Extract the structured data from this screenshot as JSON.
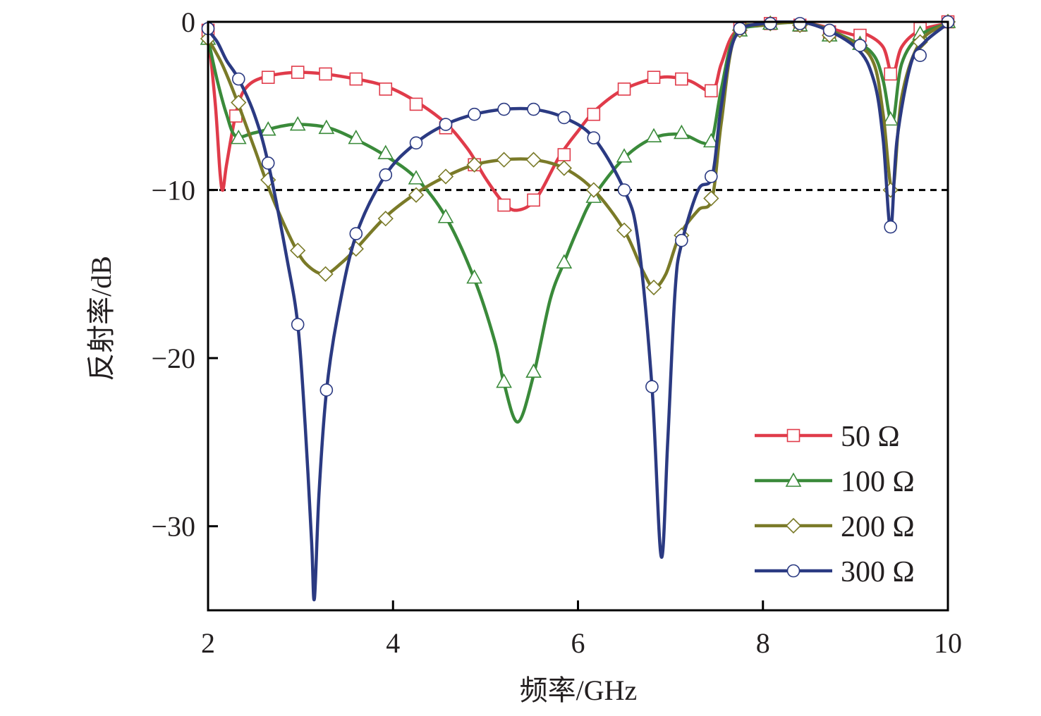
{
  "chart_data": {
    "type": "line",
    "xlabel": "频率/GHz",
    "ylabel": "反射率/dB",
    "xlim": [
      2,
      10
    ],
    "ylim": [
      -35,
      0
    ],
    "xticks": [
      2,
      4,
      6,
      8,
      10
    ],
    "xtick_labels": [
      "2",
      "4",
      "6",
      "8",
      "10"
    ],
    "yticks": [
      0,
      -10,
      -20,
      -30
    ],
    "ytick_labels": [
      "0",
      "−10",
      "−20",
      "−30"
    ],
    "grid": false,
    "legend_position": "bottom-right",
    "reference_line": {
      "y": -10,
      "style": "dashed",
      "color": "#000000"
    },
    "series": [
      {
        "name": "50 Ω",
        "color": "#e03b4a",
        "marker": "square",
        "curve": [
          [
            2.0,
            -0.5
          ],
          [
            2.08,
            -5
          ],
          [
            2.13,
            -9
          ],
          [
            2.16,
            -10
          ],
          [
            2.2,
            -8.5
          ],
          [
            2.3,
            -5.5
          ],
          [
            2.4,
            -4
          ],
          [
            2.6,
            -3.3
          ],
          [
            3.0,
            -3.0
          ],
          [
            3.5,
            -3.3
          ],
          [
            4.0,
            -4.0
          ],
          [
            4.5,
            -5.7
          ],
          [
            4.8,
            -7.5
          ],
          [
            5.0,
            -9.3
          ],
          [
            5.2,
            -10.8
          ],
          [
            5.35,
            -11.2
          ],
          [
            5.55,
            -10.5
          ],
          [
            5.8,
            -8.0
          ],
          [
            6.0,
            -6.5
          ],
          [
            6.2,
            -5.2
          ],
          [
            6.5,
            -4.0
          ],
          [
            6.9,
            -3.3
          ],
          [
            7.2,
            -3.5
          ],
          [
            7.45,
            -4.1
          ],
          [
            7.55,
            -2.5
          ],
          [
            7.7,
            -0.6
          ],
          [
            8.0,
            -0.1
          ],
          [
            8.5,
            -0.1
          ],
          [
            9.0,
            -0.8
          ],
          [
            9.1,
            -0.7
          ],
          [
            9.3,
            -1.5
          ],
          [
            9.4,
            -3.2
          ],
          [
            9.5,
            -1.5
          ],
          [
            9.7,
            -0.5
          ],
          [
            10.0,
            -0.1
          ]
        ],
        "markers": [
          [
            2.0,
            -0.5
          ],
          [
            2.3,
            -5.6
          ],
          [
            2.65,
            -3.3
          ],
          [
            2.97,
            -3.0
          ],
          [
            3.27,
            -3.1
          ],
          [
            3.6,
            -3.4
          ],
          [
            3.92,
            -4.0
          ],
          [
            4.25,
            -4.9
          ],
          [
            4.57,
            -6.3
          ],
          [
            4.88,
            -8.5
          ],
          [
            5.2,
            -10.9
          ],
          [
            5.52,
            -10.6
          ],
          [
            5.85,
            -7.9
          ],
          [
            6.17,
            -5.5
          ],
          [
            6.5,
            -4.0
          ],
          [
            6.82,
            -3.3
          ],
          [
            7.12,
            -3.4
          ],
          [
            7.44,
            -4.1
          ],
          [
            7.75,
            -0.4
          ],
          [
            8.08,
            -0.1
          ],
          [
            8.4,
            -0.2
          ],
          [
            8.72,
            -0.6
          ],
          [
            9.05,
            -0.8
          ],
          [
            9.38,
            -3.1
          ],
          [
            9.7,
            -0.4
          ],
          [
            10.0,
            0.0
          ]
        ]
      },
      {
        "name": "100 Ω",
        "color": "#3a8a3a",
        "marker": "triangle",
        "curve": [
          [
            2.0,
            -1.0
          ],
          [
            2.1,
            -3.5
          ],
          [
            2.2,
            -5.5
          ],
          [
            2.3,
            -6.8
          ],
          [
            2.5,
            -6.6
          ],
          [
            2.8,
            -6.2
          ],
          [
            3.0,
            -6.1
          ],
          [
            3.3,
            -6.3
          ],
          [
            3.6,
            -7.0
          ],
          [
            3.9,
            -7.9
          ],
          [
            4.25,
            -9.3
          ],
          [
            4.57,
            -11.6
          ],
          [
            4.88,
            -15.3
          ],
          [
            5.1,
            -19.0
          ],
          [
            5.2,
            -21.5
          ],
          [
            5.35,
            -23.8
          ],
          [
            5.52,
            -21.0
          ],
          [
            5.7,
            -16.5
          ],
          [
            5.85,
            -14.3
          ],
          [
            6.0,
            -12.3
          ],
          [
            6.17,
            -10.4
          ],
          [
            6.5,
            -8.1
          ],
          [
            6.82,
            -6.9
          ],
          [
            7.12,
            -6.7
          ],
          [
            7.35,
            -7.2
          ],
          [
            7.45,
            -7.0
          ],
          [
            7.55,
            -4.0
          ],
          [
            7.7,
            -0.8
          ],
          [
            8.0,
            -0.2
          ],
          [
            8.5,
            -0.1
          ],
          [
            9.0,
            -1.2
          ],
          [
            9.2,
            -2.0
          ],
          [
            9.3,
            -3.5
          ],
          [
            9.4,
            -6.0
          ],
          [
            9.5,
            -2.5
          ],
          [
            9.7,
            -0.8
          ],
          [
            10.0,
            -0.1
          ]
        ],
        "markers": [
          [
            2.0,
            -1.0
          ],
          [
            2.33,
            -6.9
          ],
          [
            2.65,
            -6.4
          ],
          [
            2.97,
            -6.1
          ],
          [
            3.28,
            -6.3
          ],
          [
            3.6,
            -6.9
          ],
          [
            3.92,
            -7.8
          ],
          [
            4.25,
            -9.3
          ],
          [
            4.57,
            -11.6
          ],
          [
            4.88,
            -15.2
          ],
          [
            5.2,
            -21.4
          ],
          [
            5.52,
            -20.8
          ],
          [
            5.85,
            -14.3
          ],
          [
            6.17,
            -10.4
          ],
          [
            6.5,
            -8.0
          ],
          [
            6.82,
            -6.8
          ],
          [
            7.12,
            -6.6
          ],
          [
            7.44,
            -7.1
          ],
          [
            7.75,
            -0.5
          ],
          [
            8.08,
            -0.1
          ],
          [
            8.4,
            -0.2
          ],
          [
            8.72,
            -0.8
          ],
          [
            9.05,
            -1.3
          ],
          [
            9.38,
            -5.8
          ],
          [
            9.7,
            -0.7
          ],
          [
            10.0,
            0.0
          ]
        ]
      },
      {
        "name": "200 Ω",
        "color": "#7a7a28",
        "marker": "diamond",
        "curve": [
          [
            2.0,
            -1.0
          ],
          [
            2.15,
            -2.5
          ],
          [
            2.3,
            -4.5
          ],
          [
            2.5,
            -7.5
          ],
          [
            2.7,
            -10.5
          ],
          [
            2.95,
            -13.5
          ],
          [
            3.1,
            -14.6
          ],
          [
            3.27,
            -15.0
          ],
          [
            3.45,
            -14.3
          ],
          [
            3.6,
            -13.5
          ],
          [
            3.92,
            -11.6
          ],
          [
            4.25,
            -10.2
          ],
          [
            4.57,
            -9.2
          ],
          [
            4.88,
            -8.5
          ],
          [
            5.2,
            -8.2
          ],
          [
            5.52,
            -8.2
          ],
          [
            5.85,
            -8.7
          ],
          [
            6.17,
            -10.0
          ],
          [
            6.5,
            -12.4
          ],
          [
            6.7,
            -14.8
          ],
          [
            6.82,
            -15.8
          ],
          [
            6.95,
            -15.0
          ],
          [
            7.1,
            -12.7
          ],
          [
            7.3,
            -11.2
          ],
          [
            7.45,
            -10.5
          ],
          [
            7.55,
            -6.0
          ],
          [
            7.7,
            -0.8
          ],
          [
            8.0,
            -0.2
          ],
          [
            8.5,
            -0.1
          ],
          [
            9.0,
            -1.3
          ],
          [
            9.2,
            -2.5
          ],
          [
            9.3,
            -5.5
          ],
          [
            9.4,
            -10.0
          ],
          [
            9.5,
            -4.5
          ],
          [
            9.7,
            -1.2
          ],
          [
            10.0,
            -0.1
          ]
        ],
        "markers": [
          [
            2.0,
            -1.0
          ],
          [
            2.33,
            -4.8
          ],
          [
            2.65,
            -9.4
          ],
          [
            2.97,
            -13.6
          ],
          [
            3.27,
            -15.0
          ],
          [
            3.6,
            -13.5
          ],
          [
            3.92,
            -11.7
          ],
          [
            4.25,
            -10.3
          ],
          [
            4.57,
            -9.2
          ],
          [
            4.88,
            -8.5
          ],
          [
            5.2,
            -8.2
          ],
          [
            5.52,
            -8.2
          ],
          [
            5.85,
            -8.7
          ],
          [
            6.17,
            -10.0
          ],
          [
            6.5,
            -12.4
          ],
          [
            6.82,
            -15.8
          ],
          [
            7.12,
            -12.7
          ],
          [
            7.44,
            -10.5
          ],
          [
            7.75,
            -0.5
          ],
          [
            8.08,
            -0.1
          ],
          [
            8.4,
            -0.2
          ],
          [
            8.72,
            -0.8
          ],
          [
            9.05,
            -1.4
          ],
          [
            9.38,
            -10.0
          ],
          [
            9.7,
            -1.2
          ],
          [
            10.0,
            0.0
          ]
        ]
      },
      {
        "name": "300 Ω",
        "color": "#2b3a82",
        "marker": "circle",
        "curve": [
          [
            2.0,
            -0.5
          ],
          [
            2.1,
            -1.2
          ],
          [
            2.2,
            -2.3
          ],
          [
            2.33,
            -3.4
          ],
          [
            2.5,
            -5.5
          ],
          [
            2.65,
            -8.4
          ],
          [
            2.85,
            -14.0
          ],
          [
            2.97,
            -18.0
          ],
          [
            3.05,
            -24.0
          ],
          [
            3.12,
            -31.0
          ],
          [
            3.15,
            -34.3
          ],
          [
            3.2,
            -28.0
          ],
          [
            3.28,
            -22.0
          ],
          [
            3.4,
            -17.5
          ],
          [
            3.6,
            -12.7
          ],
          [
            3.92,
            -9.1
          ],
          [
            4.25,
            -7.2
          ],
          [
            4.57,
            -6.1
          ],
          [
            4.88,
            -5.5
          ],
          [
            5.2,
            -5.2
          ],
          [
            5.52,
            -5.2
          ],
          [
            5.85,
            -5.7
          ],
          [
            6.17,
            -6.9
          ],
          [
            6.5,
            -10.0
          ],
          [
            6.65,
            -13.0
          ],
          [
            6.8,
            -21.7
          ],
          [
            6.9,
            -31.8
          ],
          [
            6.97,
            -25.0
          ],
          [
            7.05,
            -16.0
          ],
          [
            7.12,
            -13.2
          ],
          [
            7.3,
            -10.0
          ],
          [
            7.45,
            -9.2
          ],
          [
            7.55,
            -5.0
          ],
          [
            7.7,
            -0.9
          ],
          [
            8.0,
            -0.1
          ],
          [
            8.5,
            -0.1
          ],
          [
            9.0,
            -1.5
          ],
          [
            9.2,
            -3.5
          ],
          [
            9.3,
            -7.0
          ],
          [
            9.38,
            -12.3
          ],
          [
            9.45,
            -7.0
          ],
          [
            9.6,
            -2.5
          ],
          [
            9.75,
            -1.2
          ],
          [
            10.0,
            -0.1
          ]
        ],
        "markers": [
          [
            2.0,
            -0.4
          ],
          [
            2.33,
            -3.4
          ],
          [
            2.65,
            -8.4
          ],
          [
            2.97,
            -18.0
          ],
          [
            3.28,
            -21.9
          ],
          [
            3.6,
            -12.6
          ],
          [
            3.92,
            -9.1
          ],
          [
            4.25,
            -7.2
          ],
          [
            4.57,
            -6.1
          ],
          [
            4.88,
            -5.5
          ],
          [
            5.2,
            -5.2
          ],
          [
            5.52,
            -5.2
          ],
          [
            5.85,
            -5.7
          ],
          [
            6.17,
            -6.9
          ],
          [
            6.5,
            -10.0
          ],
          [
            6.8,
            -21.7
          ],
          [
            7.12,
            -13.0
          ],
          [
            7.44,
            -9.2
          ],
          [
            7.75,
            -0.4
          ],
          [
            8.08,
            -0.1
          ],
          [
            8.4,
            -0.1
          ],
          [
            8.72,
            -0.5
          ],
          [
            9.05,
            -1.4
          ],
          [
            9.38,
            -12.2
          ],
          [
            9.7,
            -2.0
          ],
          [
            10.0,
            0.0
          ]
        ]
      }
    ]
  }
}
